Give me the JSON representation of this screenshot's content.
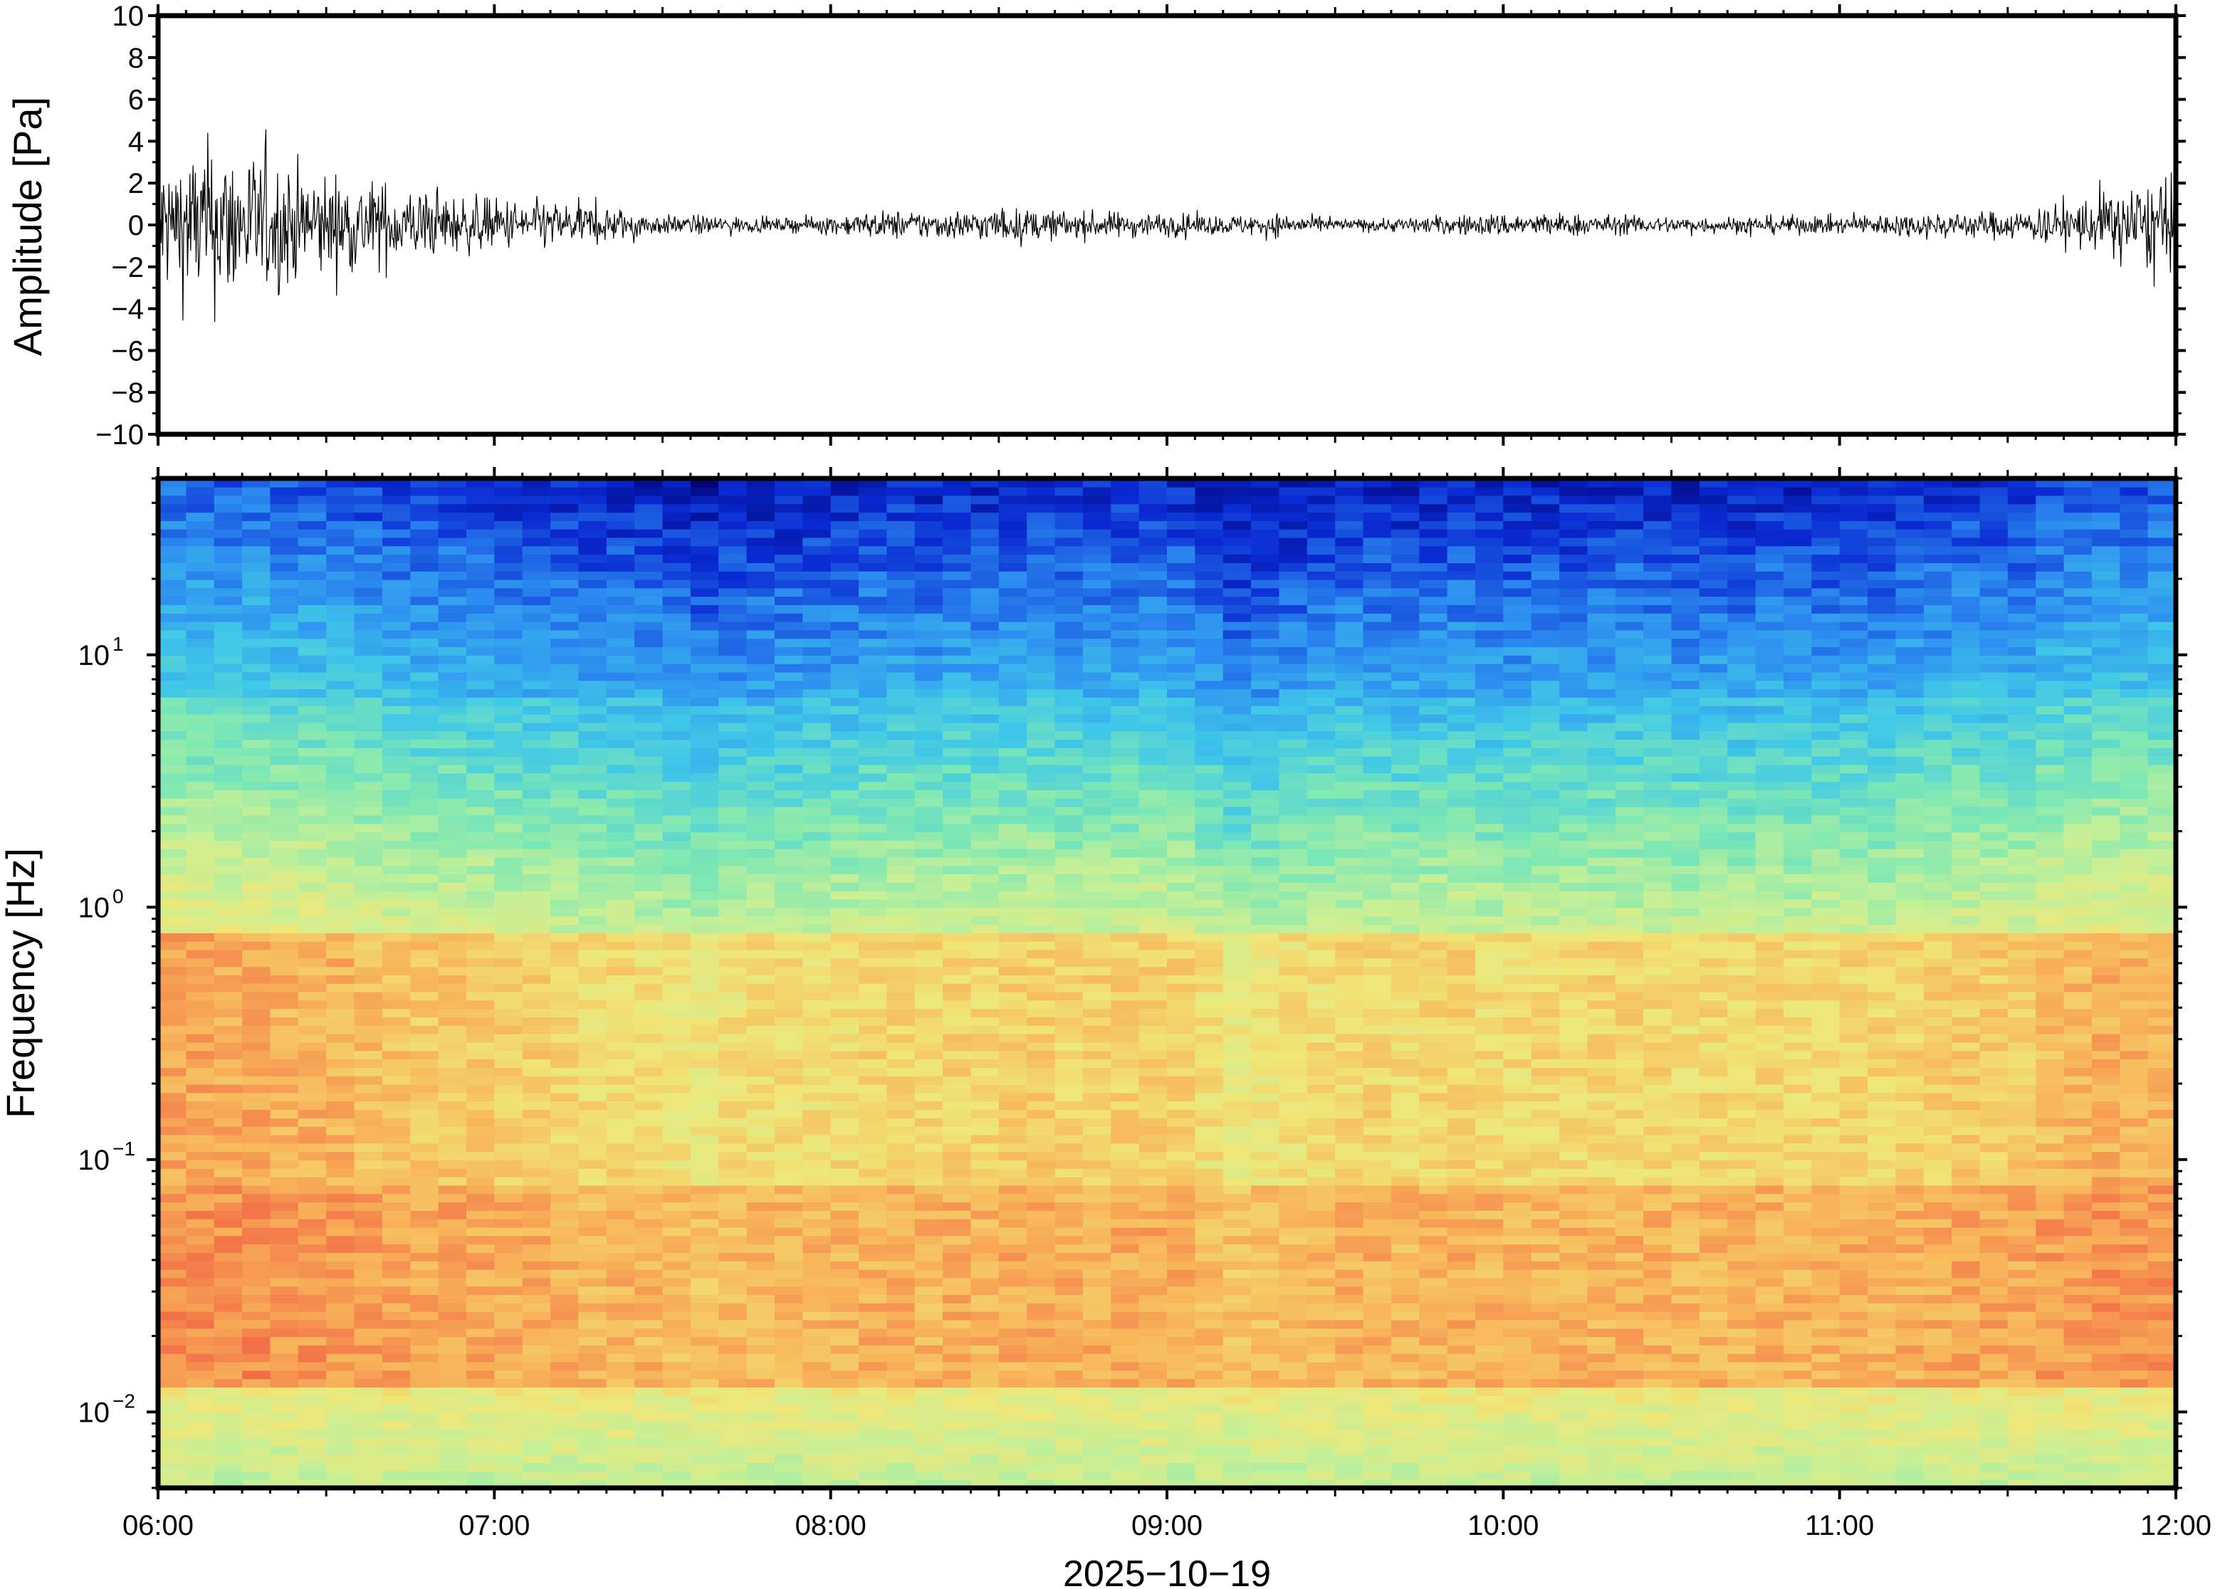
{
  "chart_data": [
    {
      "type": "line",
      "ylabel": "Amplitude [Pa]",
      "ylim": [
        -10,
        10
      ],
      "yticks": [
        -10,
        -8,
        -6,
        -4,
        -2,
        0,
        2,
        4,
        6,
        8,
        10
      ],
      "yticklabels": [
        "−10",
        "−8",
        "−6",
        "−4",
        "−2",
        "0",
        "2",
        "4",
        "6",
        "8",
        "10"
      ],
      "xlim": [
        "06:00",
        "12:00"
      ],
      "envelope_time_min": [
        0,
        10,
        20,
        30,
        40,
        50,
        60,
        70,
        80,
        90,
        100,
        110,
        120,
        130,
        140,
        150,
        160,
        170,
        180,
        190,
        200,
        210,
        220,
        230,
        240,
        250,
        260,
        270,
        280,
        290,
        300,
        310,
        320,
        330,
        340,
        350,
        360
      ],
      "envelope_amplitude_pa": [
        2.8,
        3.6,
        2.8,
        2.2,
        1.8,
        1.3,
        1.1,
        1.0,
        0.8,
        0.4,
        0.4,
        0.25,
        0.4,
        0.6,
        0.6,
        0.7,
        0.6,
        0.55,
        0.5,
        0.4,
        0.5,
        0.25,
        0.3,
        0.4,
        0.5,
        0.5,
        0.4,
        0.35,
        0.35,
        0.4,
        0.35,
        0.5,
        0.55,
        0.6,
        0.9,
        1.6,
        2.0
      ],
      "trace_color": "#000000"
    },
    {
      "type": "heatmap",
      "ylabel": "Frequency [Hz]",
      "yscale": "log",
      "ylim": [
        0.005,
        50
      ],
      "yticks": [
        0.01,
        0.1,
        1,
        10
      ],
      "ytick_mantissa": "10",
      "ytick_exponents": [
        "−2",
        "−1",
        "0",
        "1"
      ],
      "xlim": [
        "06:00",
        "12:00"
      ],
      "xticks": [
        "06:00",
        "07:00",
        "08:00",
        "09:00",
        "10:00",
        "11:00",
        "12:00"
      ],
      "xlabel": "2025−10−19",
      "colormap": [
        "#00006e",
        "#0a2ad2",
        "#2d8ef0",
        "#40c8e8",
        "#7ee8b4",
        "#c8f096",
        "#f0e678",
        "#f8b45a",
        "#f26b46",
        "#ff8c96"
      ],
      "time_min": [
        0,
        30,
        60,
        90,
        96,
        105,
        120,
        150,
        180,
        192,
        210,
        240,
        270,
        300,
        330,
        345,
        360
      ],
      "rel_intensity": [
        1.0,
        0.85,
        0.55,
        0.35,
        0.2,
        0.35,
        0.45,
        0.5,
        0.55,
        0.2,
        0.4,
        0.45,
        0.45,
        0.45,
        0.6,
        0.85,
        0.9
      ]
    }
  ]
}
